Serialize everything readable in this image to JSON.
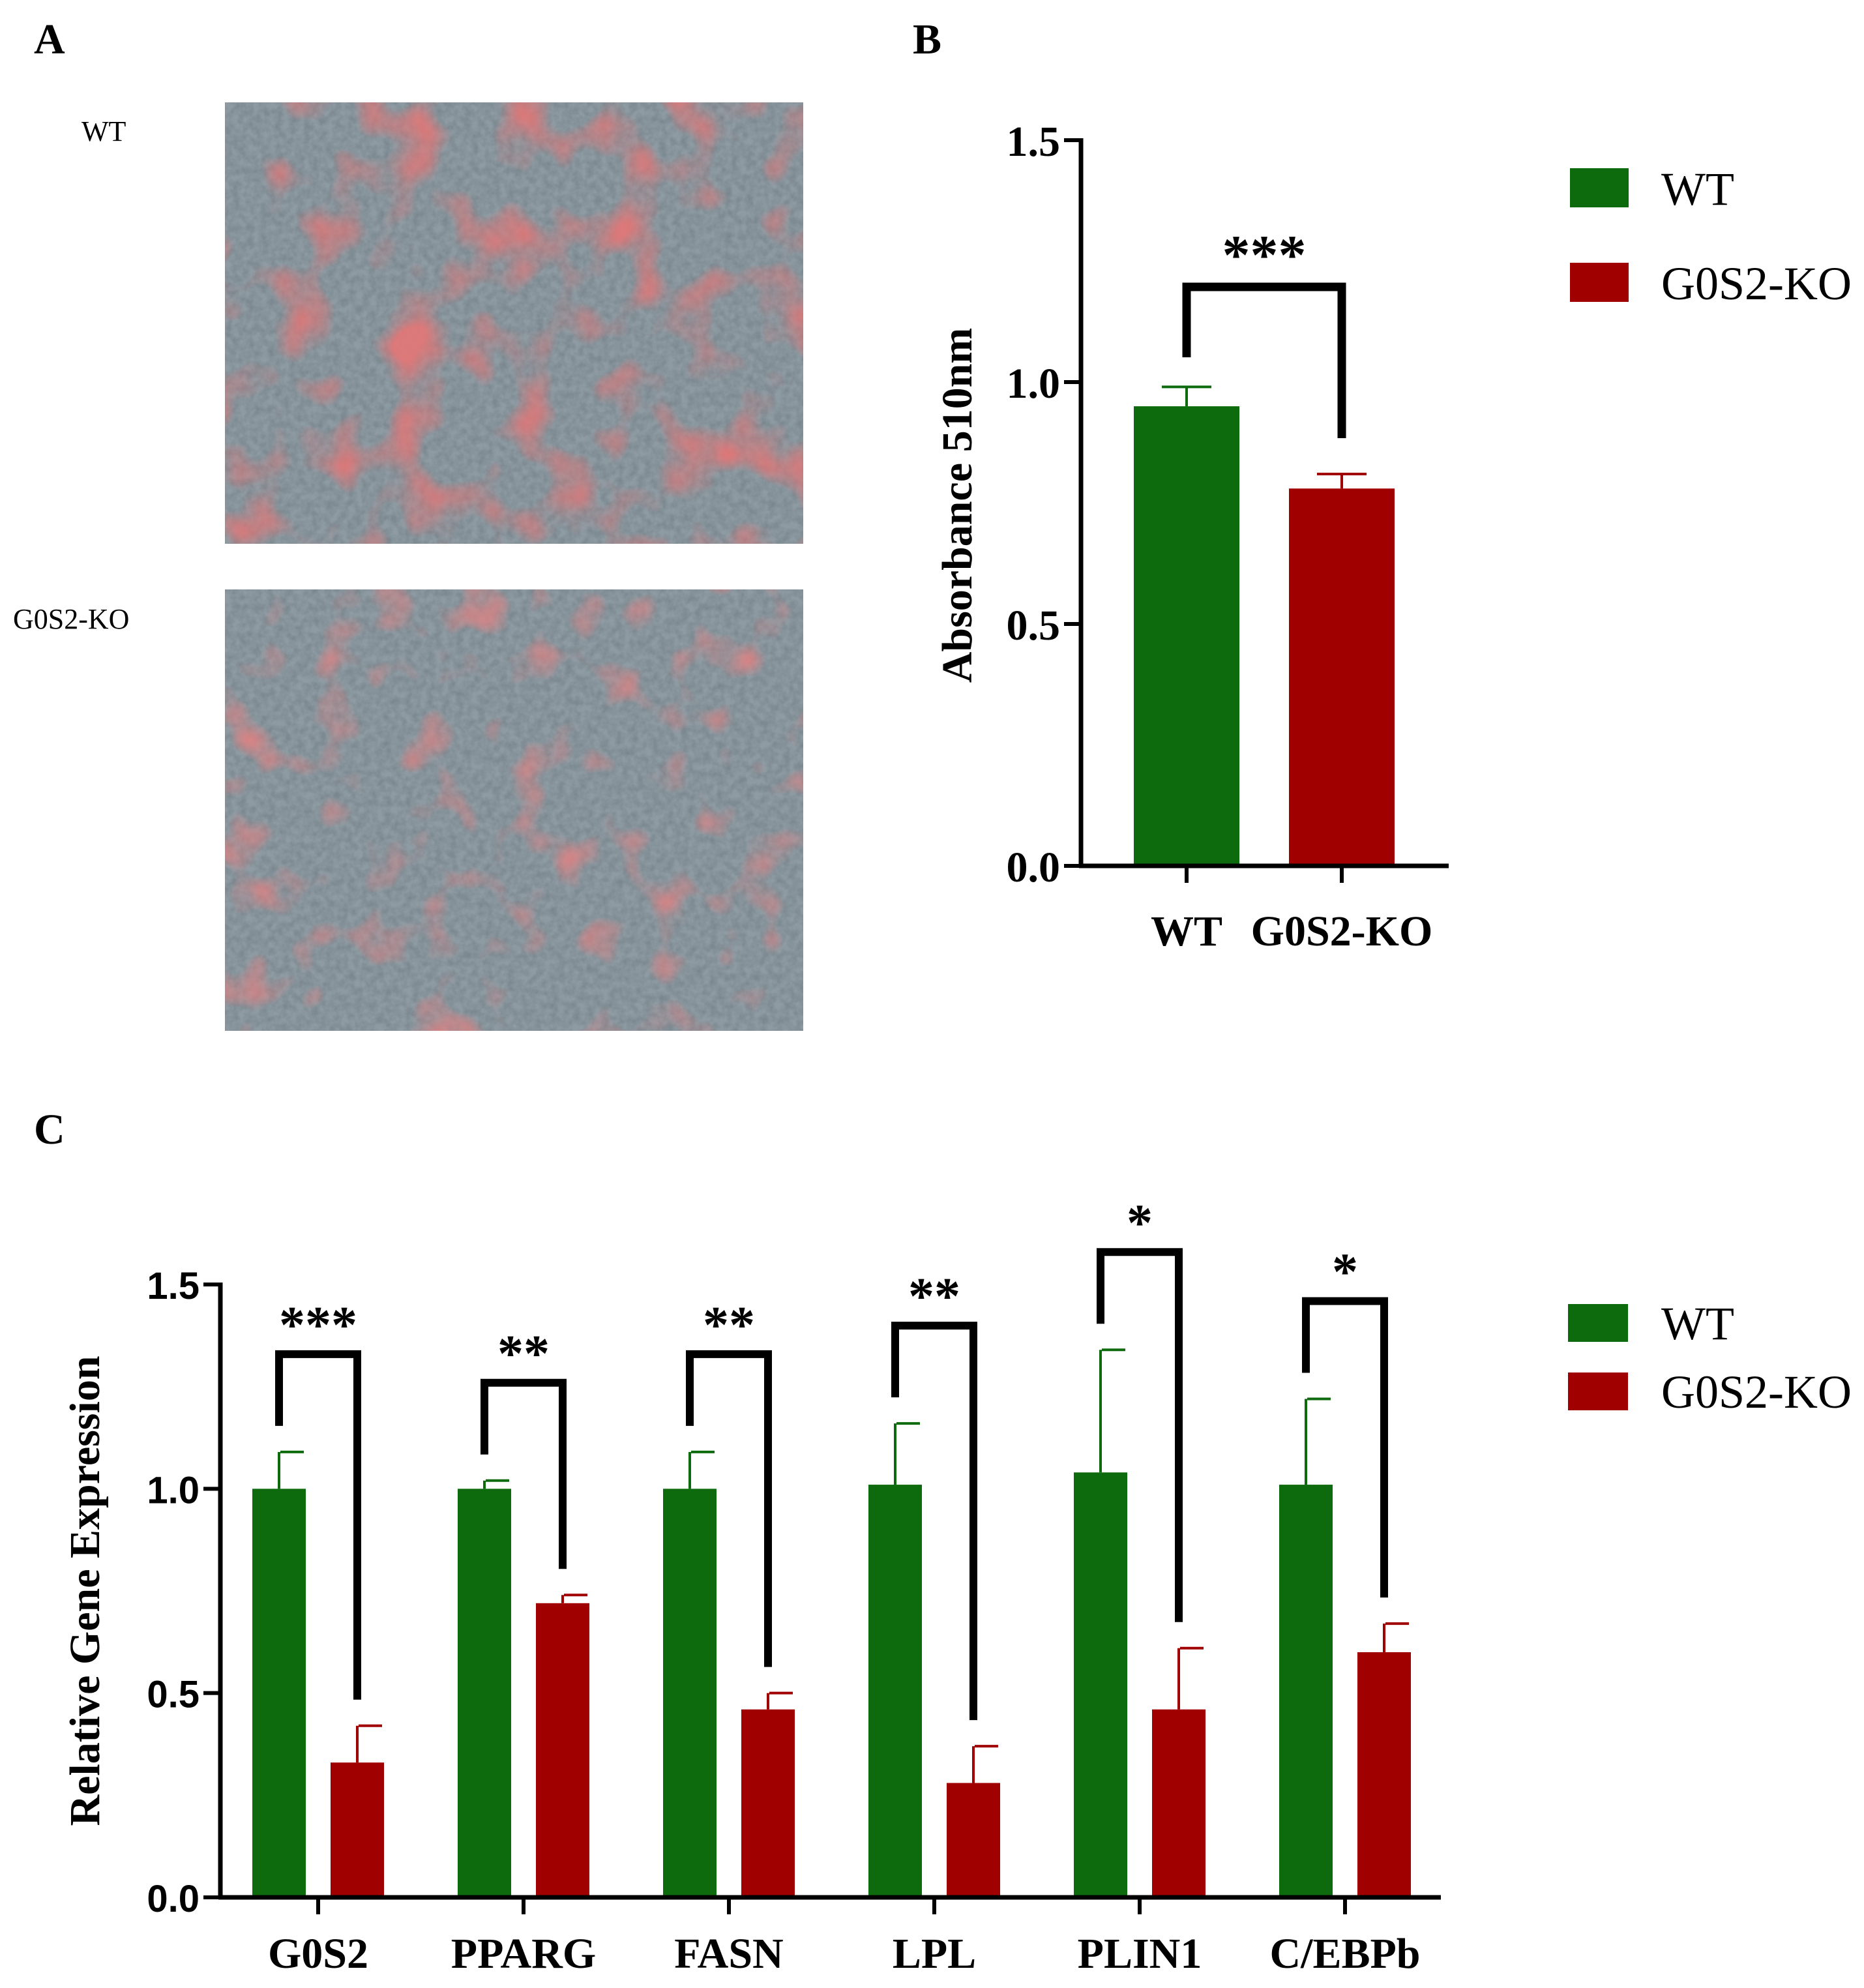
{
  "panels": {
    "a": {
      "letter": "A",
      "images": [
        {
          "label": "WT"
        },
        {
          "label": "G0S2-KO"
        }
      ]
    },
    "b": {
      "letter": "B"
    },
    "c": {
      "letter": "C"
    }
  },
  "colors": {
    "wt": "#0d6a0d",
    "ko": "#a10000",
    "axis": "#000000"
  },
  "chart_data": [
    {
      "type": "bar",
      "panel": "B",
      "categories": [
        "WT",
        "G0S2-KO"
      ],
      "series": [
        {
          "name": "WT",
          "values": [
            0.95,
            null
          ],
          "errors": [
            0.04,
            null
          ]
        },
        {
          "name": "G0S2-KO",
          "values": [
            null,
            0.78
          ],
          "errors": [
            null,
            0.03
          ]
        }
      ],
      "ylabel": "Absorbance 510nm",
      "ylim": [
        0,
        1.5
      ],
      "yticks": [
        "0.0",
        "0.5",
        "1.0",
        "1.5"
      ],
      "legend": {
        "position": "top-right",
        "entries": [
          "WT",
          "G0S2-KO"
        ]
      },
      "significance": [
        {
          "label": "***"
        }
      ]
    },
    {
      "type": "bar",
      "panel": "C",
      "categories": [
        "G0S2",
        "PPARG",
        "FASN",
        "LPL",
        "PLIN1",
        "C/EBPb"
      ],
      "series": [
        {
          "name": "WT",
          "values": [
            1.0,
            1.0,
            1.0,
            1.01,
            1.04,
            1.01
          ],
          "errors": [
            0.09,
            0.02,
            0.09,
            0.15,
            0.3,
            0.21
          ]
        },
        {
          "name": "G0S2-KO",
          "values": [
            0.33,
            0.72,
            0.46,
            0.28,
            0.46,
            0.6
          ],
          "errors": [
            0.09,
            0.02,
            0.04,
            0.09,
            0.15,
            0.07
          ]
        }
      ],
      "ylabel": "Relative Gene Expression",
      "ylim": [
        0,
        1.5
      ],
      "yticks": [
        "0.0",
        "0.5",
        "1.0",
        "1.5"
      ],
      "legend": {
        "position": "top-right",
        "entries": [
          "WT",
          "G0S2-KO"
        ]
      },
      "significance": [
        {
          "label": "***"
        },
        {
          "label": "**"
        },
        {
          "label": "**"
        },
        {
          "label": "**"
        },
        {
          "label": "*"
        },
        {
          "label": "*"
        }
      ]
    }
  ]
}
